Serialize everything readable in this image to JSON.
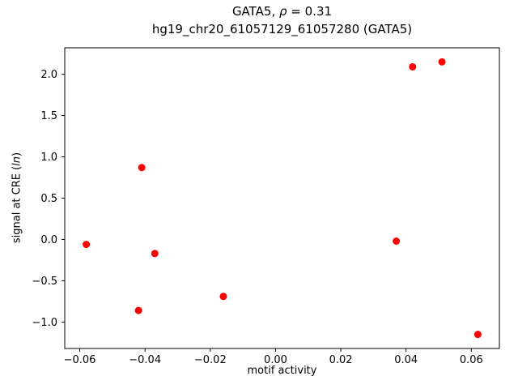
{
  "chart_data": {
    "type": "scatter",
    "title": {
      "line1_pre": "GATA5, ",
      "line1_italic": "ρ",
      "line1_post": " = 0.31",
      "line2": "hg19_chr20_61057129_61057280 (GATA5)"
    },
    "xlabel": "motif activity",
    "ylabel": {
      "pre": "signal at CRE (",
      "italic": "ln",
      "post": ")"
    },
    "xlim": [
      -0.0646,
      0.0686
    ],
    "ylim": [
      -1.32,
      2.32
    ],
    "xticks": [
      {
        "v": -0.06,
        "label": "−0.06"
      },
      {
        "v": -0.04,
        "label": "−0.04"
      },
      {
        "v": -0.02,
        "label": "−0.02"
      },
      {
        "v": 0.0,
        "label": "0.00"
      },
      {
        "v": 0.02,
        "label": "0.02"
      },
      {
        "v": 0.04,
        "label": "0.04"
      },
      {
        "v": 0.06,
        "label": "0.06"
      }
    ],
    "yticks": [
      {
        "v": -1.0,
        "label": "−1.0"
      },
      {
        "v": -0.5,
        "label": "−0.5"
      },
      {
        "v": 0.0,
        "label": "0.0"
      },
      {
        "v": 0.5,
        "label": "0.5"
      },
      {
        "v": 1.0,
        "label": "1.0"
      },
      {
        "v": 1.5,
        "label": "1.5"
      },
      {
        "v": 2.0,
        "label": "2.0"
      }
    ],
    "marker_color": "#ff0000",
    "points": [
      {
        "x": -0.058,
        "y": -0.06
      },
      {
        "x": -0.041,
        "y": 0.87
      },
      {
        "x": -0.042,
        "y": -0.86
      },
      {
        "x": -0.037,
        "y": -0.17
      },
      {
        "x": -0.016,
        "y": -0.69
      },
      {
        "x": 0.037,
        "y": -0.02
      },
      {
        "x": 0.042,
        "y": 2.09
      },
      {
        "x": 0.051,
        "y": 2.15
      },
      {
        "x": 0.062,
        "y": -1.15
      }
    ],
    "grid": false,
    "legend": "none"
  }
}
